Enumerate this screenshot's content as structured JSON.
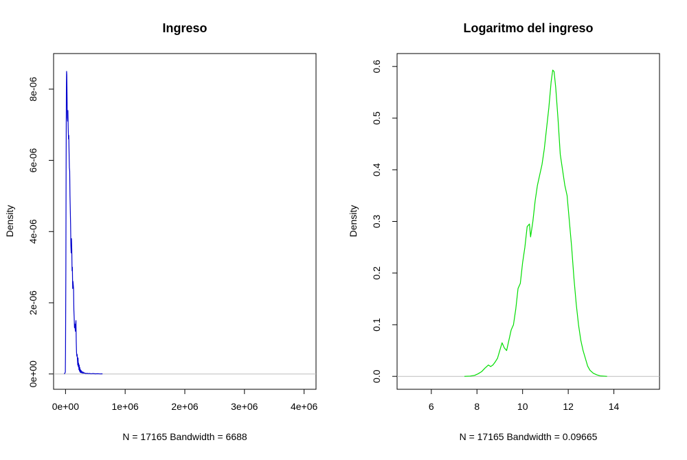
{
  "chart_data": [
    {
      "type": "line",
      "title": "Ingreso",
      "xlabel": "N = 17165   Bandwidth = 6688",
      "ylabel": "Density",
      "xlim": [
        -200000,
        4200000
      ],
      "ylim": [
        -4.3e-07,
        9e-06
      ],
      "x_ticks": [
        0,
        1000000,
        2000000,
        3000000,
        4000000
      ],
      "x_tick_labels": [
        "0e+00",
        "1e+06",
        "2e+06",
        "3e+06",
        "4e+06"
      ],
      "y_ticks": [
        0,
        2e-06,
        4e-06,
        6e-06,
        8e-06
      ],
      "y_tick_labels": [
        "0e+00",
        "2e-06",
        "4e-06",
        "6e-06",
        "8e-06"
      ],
      "baseline": 0,
      "line_color": "#0000cc",
      "baseline_color": "#bebebe",
      "series": [
        {
          "x": [
            -20000,
            -3000,
            0,
            6000,
            10000,
            14000,
            18000,
            22000,
            26000,
            30000,
            35000,
            40000,
            45000,
            50000,
            55000,
            60000,
            65000,
            70000,
            75000,
            80000,
            85000,
            90000,
            95000,
            100000,
            105000,
            110000,
            115000,
            120000,
            125000,
            130000,
            135000,
            140000,
            145000,
            150000,
            155000,
            160000,
            165000,
            170000,
            175000,
            180000,
            185000,
            190000,
            195000,
            200000,
            205000,
            210000,
            215000,
            220000,
            225000,
            230000,
            235000,
            240000,
            245000,
            250000,
            255000,
            260000,
            270000,
            280000,
            290000,
            300000,
            310000,
            320000,
            340000,
            360000,
            380000,
            400000,
            430000,
            460000,
            500000,
            540000,
            580000,
            620000
          ],
          "y": [
            0,
            5e-08,
            6e-07,
            3e-06,
            5.8e-06,
            7.9e-06,
            8.5e-06,
            8.4e-06,
            7.8e-06,
            7.2e-06,
            7.1e-06,
            7.4e-06,
            6.9e-06,
            6.6e-06,
            6.7e-06,
            6.2e-06,
            5.8e-06,
            5.7e-06,
            5e-06,
            4.6e-06,
            4.2e-06,
            3.6e-06,
            3.4e-06,
            3.8e-06,
            3.5e-06,
            2.9e-06,
            3e-06,
            2.4e-06,
            2.6e-06,
            2.5e-06,
            2.4e-06,
            1.8e-06,
            1.6e-06,
            1.3e-06,
            1.4e-06,
            1.3e-06,
            1.2e-06,
            1.4e-06,
            1.5e-06,
            9e-07,
            6e-07,
            5e-07,
            5.5e-07,
            4e-07,
            2.5e-07,
            4.5e-07,
            2e-07,
            3e-07,
            1.2e-07,
            2.5e-07,
            8e-08,
            1.8e-07,
            5e-08,
            1.2e-07,
            4e-08,
            1e-07,
            3e-08,
            7e-08,
            2e-08,
            5e-08,
            2e-08,
            3e-08,
            1e-08,
            2e-08,
            1e-08,
            1.5e-08,
            5e-09,
            1.2e-08,
            4e-09,
            8e-09,
            3e-09,
            4e-09
          ]
        }
      ]
    },
    {
      "type": "line",
      "title": "Logaritmo del ingreso",
      "xlabel": "N = 17165   Bandwidth = 0.09665",
      "ylabel": "Density",
      "xlim": [
        4.5,
        16.0
      ],
      "ylim": [
        -0.025,
        0.625
      ],
      "x_ticks": [
        6,
        8,
        10,
        12,
        14
      ],
      "x_tick_labels": [
        "6",
        "8",
        "10",
        "12",
        "14"
      ],
      "y_ticks": [
        0.0,
        0.1,
        0.2,
        0.3,
        0.4,
        0.5,
        0.6
      ],
      "y_tick_labels": [
        "0.0",
        "0.1",
        "0.2",
        "0.3",
        "0.4",
        "0.5",
        "0.6"
      ],
      "baseline": 0,
      "line_color": "#00dd00",
      "baseline_color": "#bebebe",
      "series": [
        {
          "x": [
            7.45,
            7.7,
            7.9,
            8.05,
            8.2,
            8.35,
            8.5,
            8.6,
            8.7,
            8.8,
            8.9,
            9.0,
            9.1,
            9.2,
            9.3,
            9.4,
            9.5,
            9.6,
            9.7,
            9.8,
            9.9,
            10.0,
            10.1,
            10.2,
            10.3,
            10.35,
            10.45,
            10.55,
            10.65,
            10.75,
            10.85,
            10.95,
            11.05,
            11.15,
            11.25,
            11.32,
            11.38,
            11.45,
            11.55,
            11.65,
            11.75,
            11.85,
            11.95,
            12.05,
            12.15,
            12.25,
            12.35,
            12.45,
            12.55,
            12.65,
            12.75,
            12.85,
            12.95,
            13.1,
            13.25,
            13.4,
            13.55,
            13.7
          ],
          "y": [
            0.0,
            0.0005,
            0.002,
            0.005,
            0.009,
            0.016,
            0.022,
            0.019,
            0.022,
            0.028,
            0.035,
            0.05,
            0.065,
            0.055,
            0.05,
            0.07,
            0.09,
            0.1,
            0.13,
            0.17,
            0.18,
            0.22,
            0.25,
            0.29,
            0.295,
            0.27,
            0.3,
            0.34,
            0.37,
            0.39,
            0.41,
            0.44,
            0.48,
            0.52,
            0.57,
            0.593,
            0.59,
            0.56,
            0.5,
            0.43,
            0.4,
            0.37,
            0.35,
            0.3,
            0.25,
            0.19,
            0.14,
            0.1,
            0.07,
            0.05,
            0.035,
            0.02,
            0.012,
            0.006,
            0.003,
            0.001,
            0.0005,
            0.0
          ]
        }
      ]
    }
  ]
}
